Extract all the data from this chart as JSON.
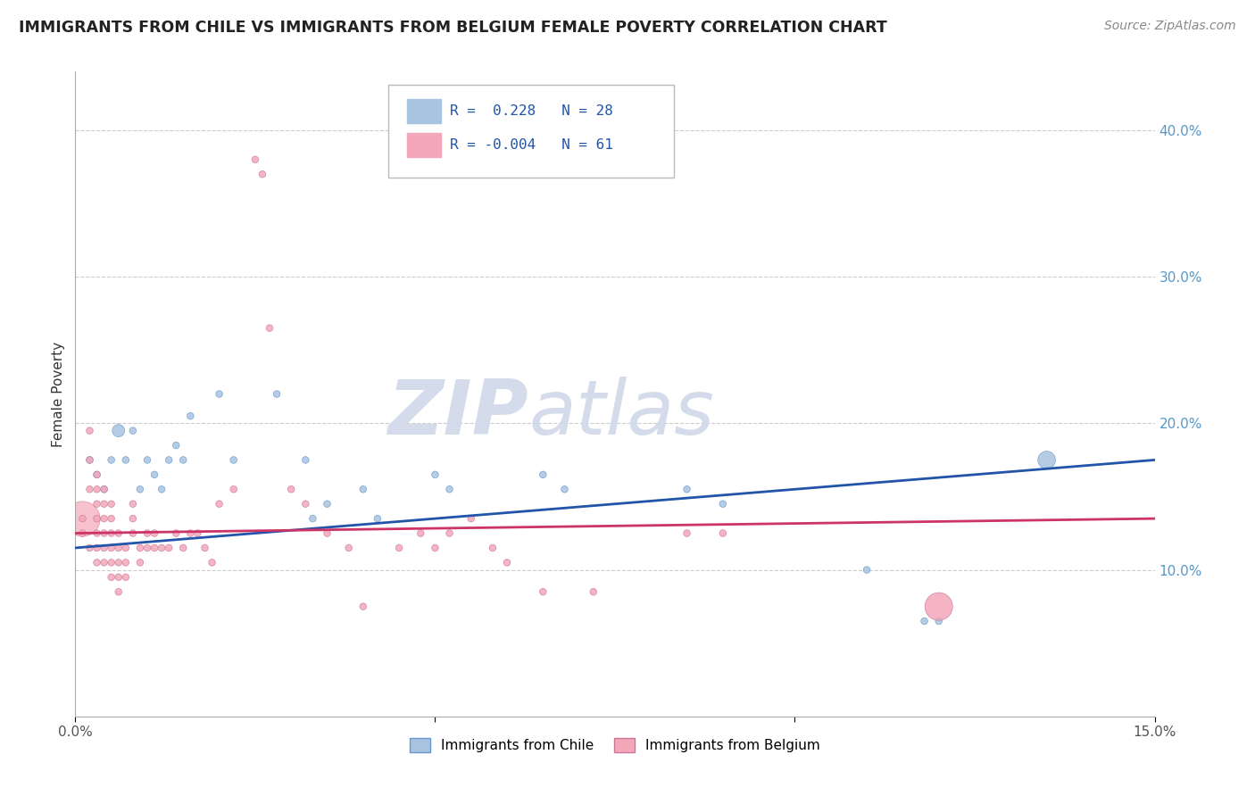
{
  "title": "IMMIGRANTS FROM CHILE VS IMMIGRANTS FROM BELGIUM FEMALE POVERTY CORRELATION CHART",
  "source": "Source: ZipAtlas.com",
  "ylabel": "Female Poverty",
  "xlim": [
    0.0,
    0.15
  ],
  "ylim": [
    0.0,
    0.44
  ],
  "ytick_positions": [
    0.1,
    0.2,
    0.3,
    0.4
  ],
  "ytick_labels": [
    "10.0%",
    "20.0%",
    "30.0%",
    "40.0%"
  ],
  "chile_color": "#a8c4e0",
  "chile_edge_color": "#6699cc",
  "belgium_color": "#f4a7b9",
  "belgium_edge_color": "#cc7799",
  "chile_line_color": "#2255aa",
  "belgium_line_color": "#cc3366",
  "watermark_color": "#d0d8e8",
  "background_color": "#ffffff",
  "grid_color": "#cccccc",
  "title_color": "#222222",
  "source_color": "#888888",
  "ytick_color": "#5599cc",
  "xtick_color": "#555555",
  "legend_edge_color": "#bbbbbb",
  "legend_r_color": "#2255aa",
  "chile_scatter": [
    [
      0.002,
      0.175
    ],
    [
      0.003,
      0.165
    ],
    [
      0.004,
      0.155
    ],
    [
      0.005,
      0.175
    ],
    [
      0.006,
      0.195
    ],
    [
      0.007,
      0.175
    ],
    [
      0.008,
      0.195
    ],
    [
      0.009,
      0.155
    ],
    [
      0.01,
      0.175
    ],
    [
      0.011,
      0.165
    ],
    [
      0.012,
      0.155
    ],
    [
      0.013,
      0.175
    ],
    [
      0.014,
      0.185
    ],
    [
      0.015,
      0.175
    ],
    [
      0.016,
      0.205
    ],
    [
      0.02,
      0.22
    ],
    [
      0.022,
      0.175
    ],
    [
      0.028,
      0.22
    ],
    [
      0.032,
      0.175
    ],
    [
      0.033,
      0.135
    ],
    [
      0.035,
      0.145
    ],
    [
      0.04,
      0.155
    ],
    [
      0.042,
      0.135
    ],
    [
      0.05,
      0.165
    ],
    [
      0.052,
      0.155
    ],
    [
      0.065,
      0.165
    ],
    [
      0.068,
      0.155
    ],
    [
      0.085,
      0.155
    ],
    [
      0.09,
      0.145
    ],
    [
      0.11,
      0.1
    ],
    [
      0.118,
      0.065
    ],
    [
      0.12,
      0.065
    ],
    [
      0.135,
      0.175
    ]
  ],
  "chile_sizes": [
    30,
    30,
    30,
    30,
    100,
    30,
    30,
    30,
    30,
    30,
    30,
    30,
    30,
    30,
    30,
    30,
    30,
    30,
    30,
    30,
    30,
    30,
    30,
    30,
    30,
    30,
    30,
    30,
    30,
    30,
    30,
    30,
    200
  ],
  "belgium_scatter": [
    [
      0.001,
      0.125
    ],
    [
      0.001,
      0.135
    ],
    [
      0.002,
      0.115
    ],
    [
      0.002,
      0.155
    ],
    [
      0.002,
      0.175
    ],
    [
      0.002,
      0.195
    ],
    [
      0.003,
      0.105
    ],
    [
      0.003,
      0.115
    ],
    [
      0.003,
      0.125
    ],
    [
      0.003,
      0.135
    ],
    [
      0.003,
      0.145
    ],
    [
      0.003,
      0.155
    ],
    [
      0.003,
      0.165
    ],
    [
      0.004,
      0.105
    ],
    [
      0.004,
      0.115
    ],
    [
      0.004,
      0.125
    ],
    [
      0.004,
      0.135
    ],
    [
      0.004,
      0.145
    ],
    [
      0.004,
      0.155
    ],
    [
      0.005,
      0.095
    ],
    [
      0.005,
      0.105
    ],
    [
      0.005,
      0.115
    ],
    [
      0.005,
      0.125
    ],
    [
      0.005,
      0.135
    ],
    [
      0.005,
      0.145
    ],
    [
      0.006,
      0.085
    ],
    [
      0.006,
      0.095
    ],
    [
      0.006,
      0.105
    ],
    [
      0.006,
      0.115
    ],
    [
      0.006,
      0.125
    ],
    [
      0.007,
      0.095
    ],
    [
      0.007,
      0.105
    ],
    [
      0.007,
      0.115
    ],
    [
      0.008,
      0.125
    ],
    [
      0.008,
      0.135
    ],
    [
      0.008,
      0.145
    ],
    [
      0.009,
      0.115
    ],
    [
      0.009,
      0.105
    ],
    [
      0.01,
      0.115
    ],
    [
      0.01,
      0.125
    ],
    [
      0.011,
      0.115
    ],
    [
      0.011,
      0.125
    ],
    [
      0.012,
      0.115
    ],
    [
      0.013,
      0.115
    ],
    [
      0.014,
      0.125
    ],
    [
      0.015,
      0.115
    ],
    [
      0.016,
      0.125
    ],
    [
      0.017,
      0.125
    ],
    [
      0.018,
      0.115
    ],
    [
      0.019,
      0.105
    ],
    [
      0.02,
      0.145
    ],
    [
      0.022,
      0.155
    ],
    [
      0.025,
      0.38
    ],
    [
      0.026,
      0.37
    ],
    [
      0.027,
      0.265
    ],
    [
      0.03,
      0.155
    ],
    [
      0.032,
      0.145
    ],
    [
      0.035,
      0.125
    ],
    [
      0.038,
      0.115
    ],
    [
      0.04,
      0.075
    ],
    [
      0.045,
      0.115
    ],
    [
      0.048,
      0.125
    ],
    [
      0.05,
      0.115
    ],
    [
      0.052,
      0.125
    ],
    [
      0.055,
      0.135
    ],
    [
      0.058,
      0.115
    ],
    [
      0.06,
      0.105
    ],
    [
      0.065,
      0.085
    ],
    [
      0.072,
      0.085
    ],
    [
      0.085,
      0.125
    ],
    [
      0.09,
      0.125
    ],
    [
      0.12,
      0.075
    ]
  ],
  "belgium_sizes": [
    30,
    30,
    30,
    30,
    30,
    30,
    30,
    30,
    30,
    30,
    30,
    30,
    30,
    30,
    30,
    30,
    30,
    30,
    30,
    30,
    30,
    30,
    30,
    30,
    30,
    30,
    30,
    30,
    30,
    30,
    30,
    30,
    30,
    30,
    30,
    30,
    30,
    30,
    30,
    30,
    30,
    30,
    30,
    30,
    30,
    30,
    30,
    30,
    30,
    30,
    30,
    30,
    30,
    30,
    30,
    30,
    30,
    30,
    30,
    30,
    30,
    30,
    30,
    30,
    30,
    30,
    30,
    30,
    30,
    30,
    30,
    500
  ],
  "chile_line_x": [
    0.0,
    0.15
  ],
  "chile_line_y": [
    0.115,
    0.175
  ],
  "belgium_line_x": [
    0.0,
    0.15
  ],
  "belgium_line_y": [
    0.125,
    0.135
  ]
}
